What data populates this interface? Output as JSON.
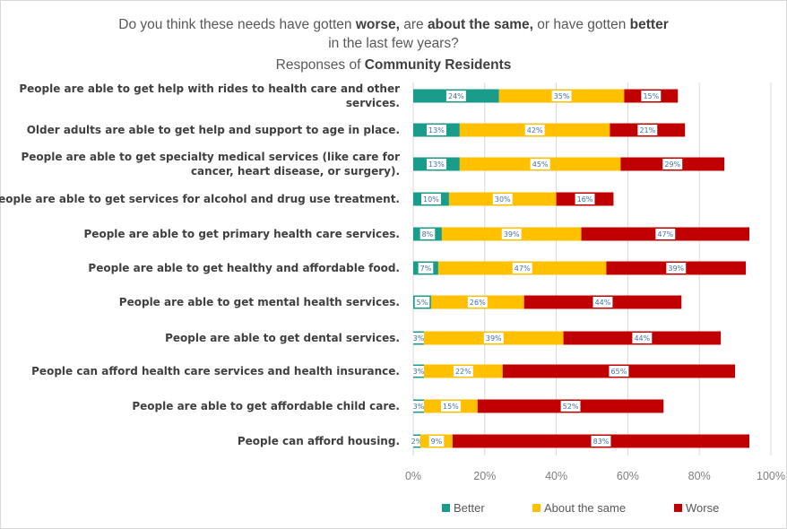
{
  "chart_data": {
    "type": "bar",
    "stacked": true,
    "orientation": "horizontal",
    "title_parts": [
      [
        {
          "t": "Do you think these needs have gotten ",
          "b": false
        },
        {
          "t": "worse,",
          "b": true
        },
        {
          "t": " are ",
          "b": false
        },
        {
          "t": "about the same,",
          "b": true
        },
        {
          "t": " or have gotten ",
          "b": false
        },
        {
          "t": "better",
          "b": true
        }
      ],
      [
        {
          "t": "in the last few years?",
          "b": false
        }
      ],
      [
        {
          "t": "Responses of ",
          "b": false
        },
        {
          "t": "Community Residents",
          "b": true
        }
      ]
    ],
    "categories": [
      "People are able to get help with rides to health care and other services.",
      "Older adults are able to get help and support to age in place.",
      "People are able to get specialty medical services (like care for cancer, heart disease, or surgery).",
      "People are able to get services for alcohol and drug use treatment.",
      "People are able to get primary health care services.",
      "People are able to get healthy and affordable food.",
      "People are able to get mental health services.",
      "People are able to get dental services.",
      "People can afford health care services and health insurance.",
      "People are able to get affordable child care.",
      "People can afford housing."
    ],
    "category_lines": [
      [
        "People are able to get help with rides to health care and other",
        "services."
      ],
      [
        "Older adults are able to get help and support to age in place."
      ],
      [
        "People are able to get specialty medical services (like care for",
        "cancer, heart disease, or surgery)."
      ],
      [
        "People are able to get services for alcohol and drug use treatment."
      ],
      [
        "People are able to get primary health care services."
      ],
      [
        "People are able to get healthy and affordable food."
      ],
      [
        "People are able to get mental health services."
      ],
      [
        "People are able to get dental services."
      ],
      [
        "People can afford health care services and health insurance."
      ],
      [
        "People are able to get affordable child care."
      ],
      [
        "People can afford housing."
      ]
    ],
    "series": [
      {
        "name": "Better",
        "color": "#1a9c8a",
        "values": [
          24,
          13,
          13,
          10,
          8,
          7,
          5,
          3,
          3,
          3,
          2
        ]
      },
      {
        "name": "About the same",
        "color": "#ffc000",
        "values": [
          35,
          42,
          45,
          30,
          39,
          47,
          26,
          39,
          22,
          15,
          9
        ]
      },
      {
        "name": "Worse",
        "color": "#c00000",
        "values": [
          15,
          21,
          29,
          16,
          47,
          39,
          44,
          44,
          65,
          52,
          83
        ]
      }
    ],
    "value_labels": [
      [
        "24%",
        "35%",
        "15%"
      ],
      [
        "13%",
        "42%",
        "21%"
      ],
      [
        "13%",
        "45%",
        "29%"
      ],
      [
        "10%",
        "30%",
        "16%"
      ],
      [
        "8%",
        "39%",
        "47%"
      ],
      [
        "7%",
        "47%",
        "39%"
      ],
      [
        "5%",
        "26%",
        "44%"
      ],
      [
        "3%",
        "39%",
        "44%"
      ],
      [
        "3%",
        "22%",
        "65%"
      ],
      [
        "3%",
        "15%",
        "52%"
      ],
      [
        "2%",
        "9%",
        "83%"
      ]
    ],
    "xlim": [
      0,
      100
    ],
    "x_ticks": [
      "0%",
      "20%",
      "40%",
      "60%",
      "80%",
      "100%"
    ],
    "xlabel": "",
    "ylabel": "",
    "gridlines": true,
    "legend_position": "bottom"
  }
}
